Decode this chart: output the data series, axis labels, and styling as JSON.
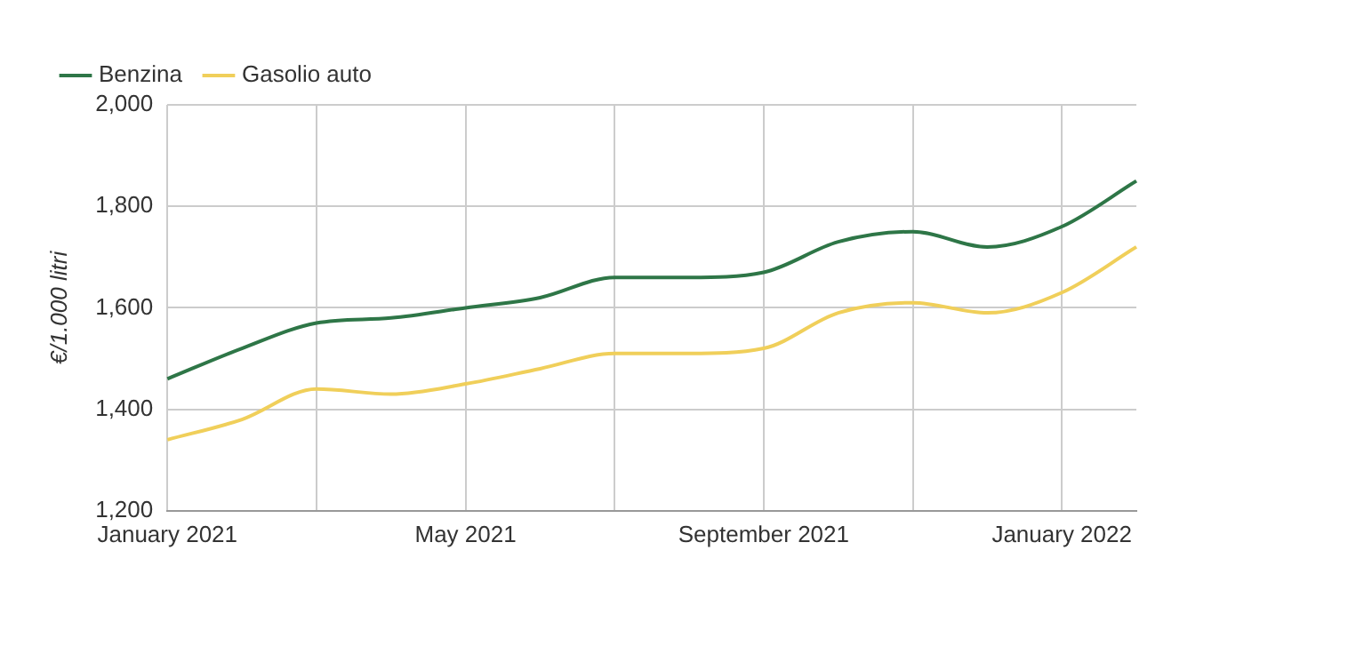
{
  "chart_data": {
    "type": "line",
    "ylabel": "€/1.000 litri",
    "categories": [
      "January 2021",
      null,
      null,
      null,
      "May 2021",
      null,
      null,
      null,
      "September 2021",
      null,
      null,
      null,
      "January 2022",
      null
    ],
    "series": [
      {
        "name": "Benzina",
        "color": "#2e7647",
        "values": [
          1460,
          1520,
          1570,
          1580,
          1600,
          1620,
          1660,
          1660,
          1670,
          1730,
          1750,
          1720,
          1760,
          1850
        ]
      },
      {
        "name": "Gasolio auto",
        "color": "#f0cf5a",
        "values": [
          1340,
          1380,
          1440,
          1430,
          1450,
          1480,
          1510,
          1510,
          1520,
          1590,
          1610,
          1590,
          1630,
          1720
        ]
      }
    ],
    "ylim": [
      1200,
      2000
    ],
    "yticks": [
      {
        "value": 1200,
        "label": "1,200"
      },
      {
        "value": 1400,
        "label": "1,400"
      },
      {
        "value": 1600,
        "label": "1,600"
      },
      {
        "value": 1800,
        "label": "1,800"
      },
      {
        "value": 2000,
        "label": "2,000"
      }
    ],
    "grid": true,
    "legend": "top left",
    "line_style": "solid",
    "marker": "none"
  }
}
